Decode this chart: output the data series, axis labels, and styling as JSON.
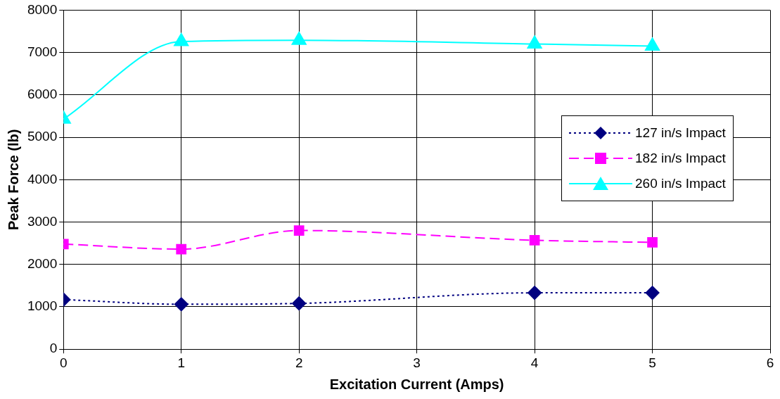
{
  "chart_data": {
    "type": "line",
    "xlabel": "Excitation Current (Amps)",
    "ylabel": "Peak Force (lb)",
    "x": [
      0,
      1,
      2,
      4,
      5
    ],
    "series": [
      {
        "name": "127 in/s Impact",
        "color": "#000080",
        "marker": "diamond",
        "line_style": "dotted",
        "values": [
          1170,
          1060,
          1080,
          1330,
          1330
        ]
      },
      {
        "name": "182 in/s Impact",
        "color": "#ff00ff",
        "marker": "square",
        "line_style": "dashed",
        "values": [
          2480,
          2360,
          2800,
          2570,
          2520
        ]
      },
      {
        "name": "260 in/s Impact",
        "color": "#00ffff",
        "marker": "triangle",
        "line_style": "solid",
        "values": [
          5430,
          7260,
          7290,
          7200,
          7150
        ]
      }
    ],
    "xlim": [
      0,
      6
    ],
    "xticks": [
      0,
      1,
      2,
      3,
      4,
      5,
      6
    ],
    "ylim": [
      0,
      8000
    ],
    "yticks": [
      0,
      1000,
      2000,
      3000,
      4000,
      5000,
      6000,
      7000,
      8000
    ],
    "grid": true,
    "legend": "right"
  }
}
